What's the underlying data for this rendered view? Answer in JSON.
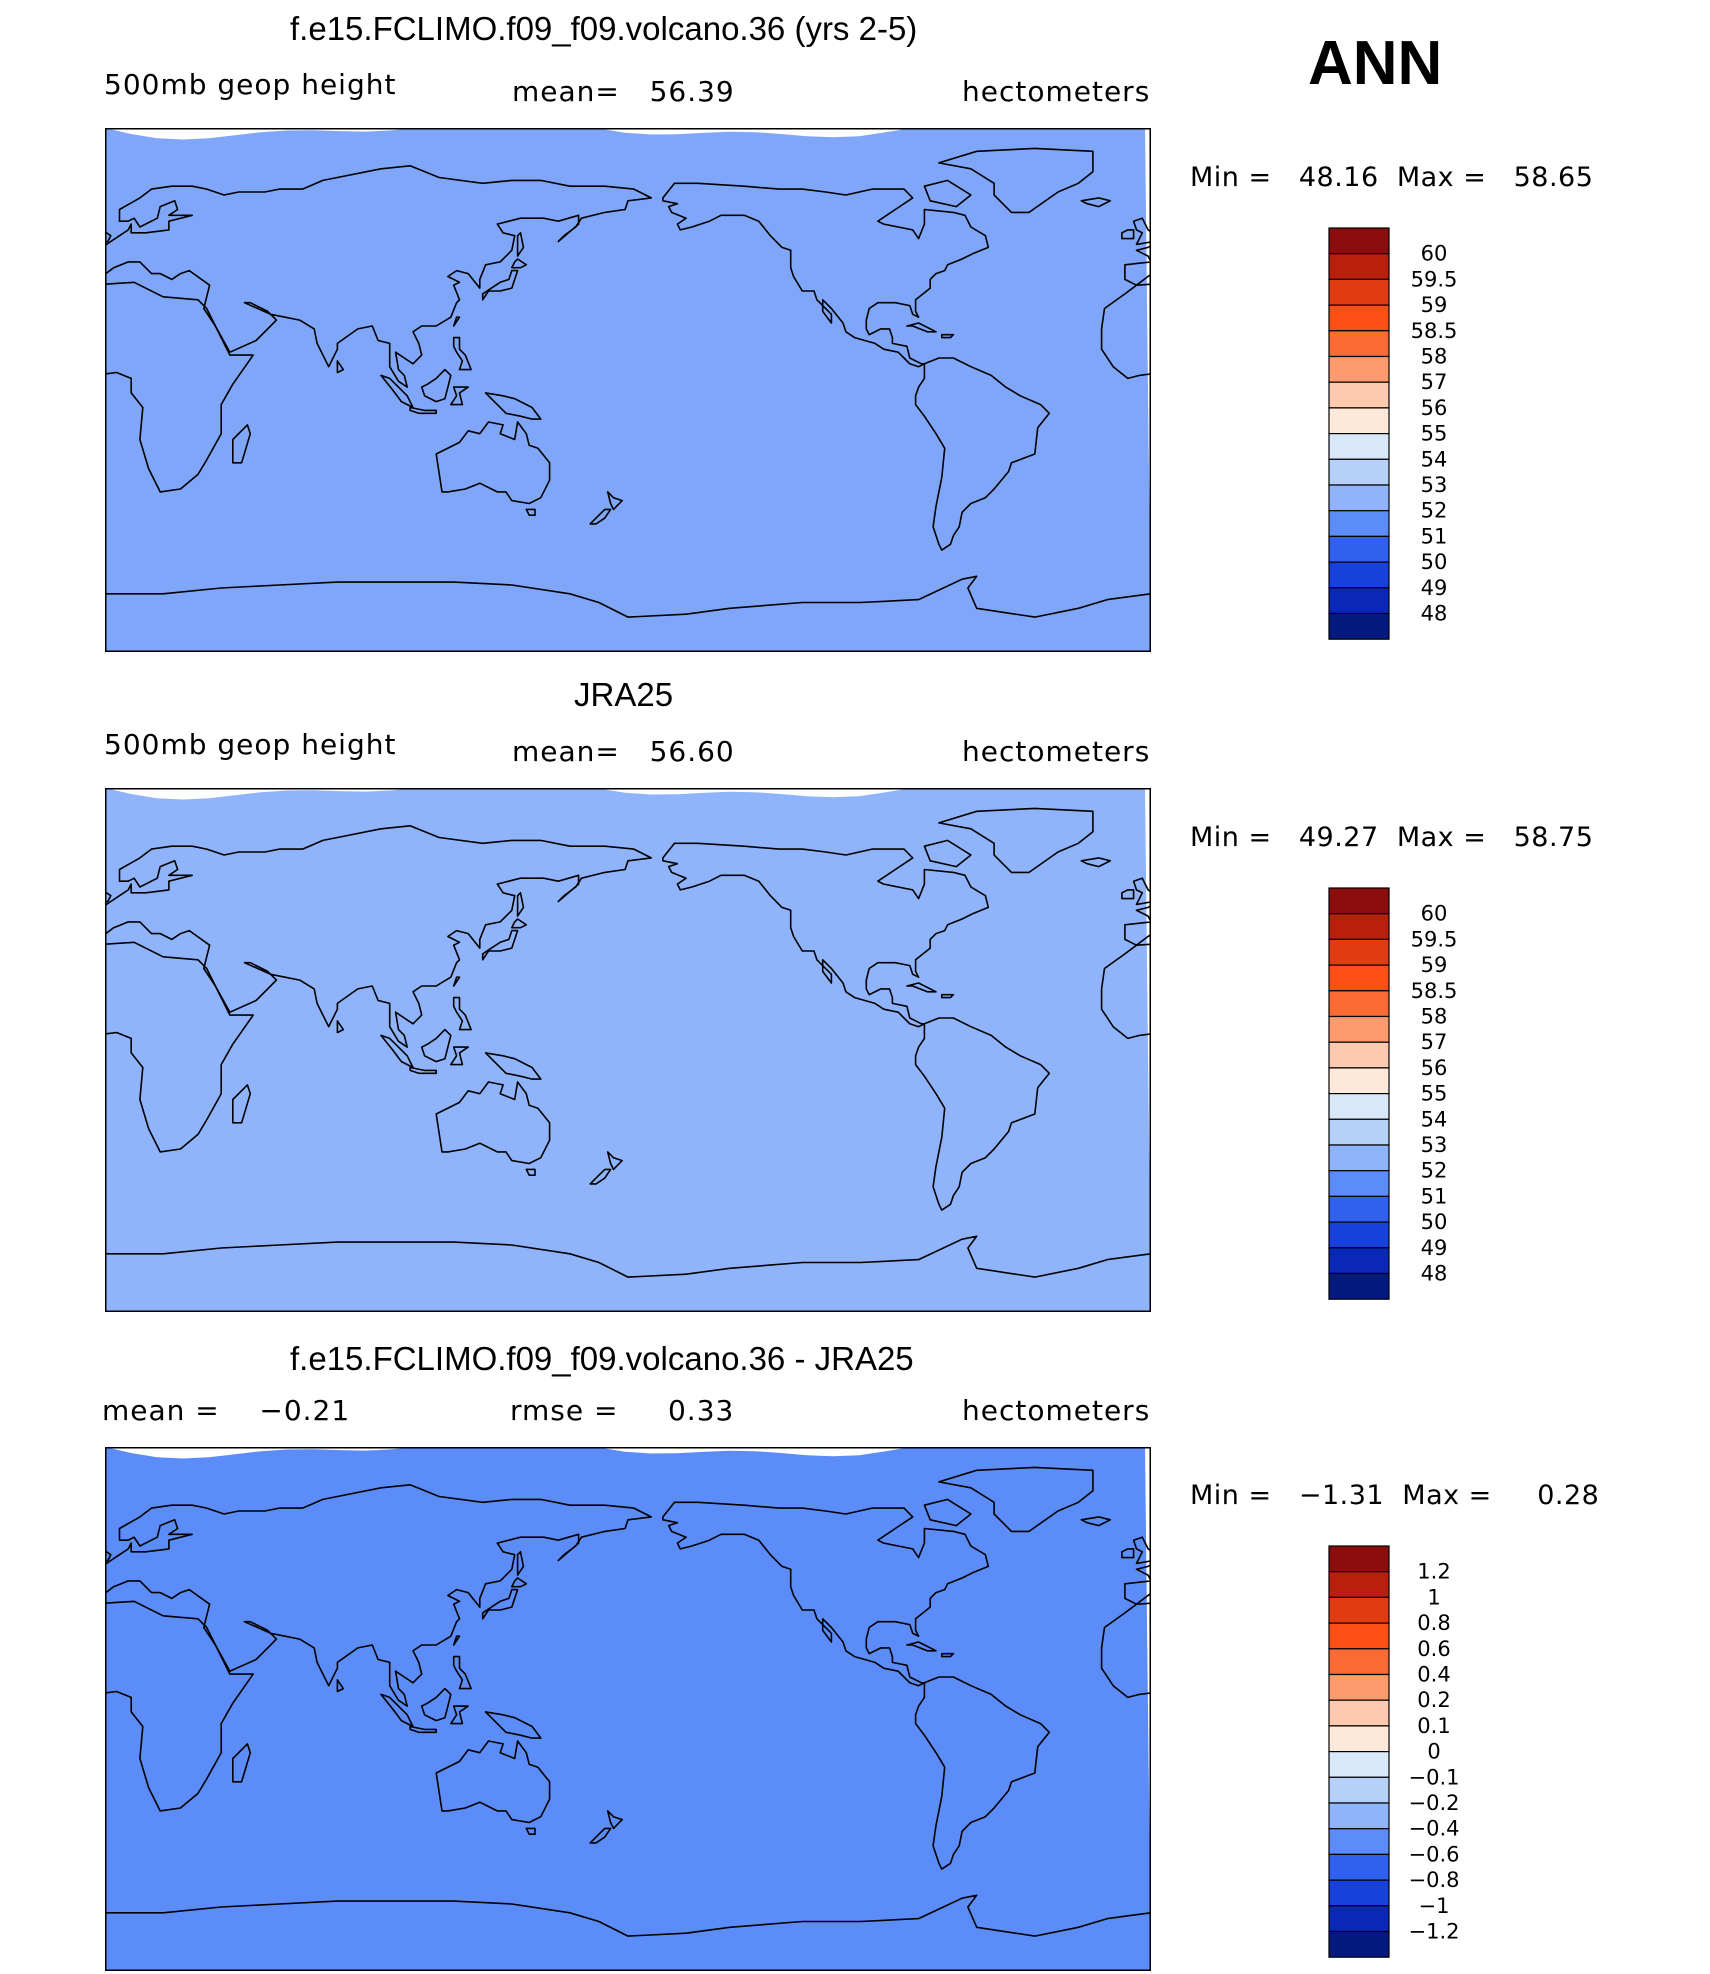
{
  "season": "ANN",
  "chart_data": [
    {
      "type": "heatmap",
      "title": "f.e15.FCLIMO.f09_f09.volcano.36 (yrs 2-5)",
      "left_label": "500mb geop height",
      "center_label": "mean=   56.39",
      "right_label": "hectometers",
      "minmax": "Min =   48.16  Max =   58.65",
      "min": 48.16,
      "max": 58.65,
      "legend_labels": [
        "60",
        "59.5",
        "59",
        "58.5",
        "58",
        "57",
        "56",
        "55",
        "54",
        "53",
        "52",
        "51",
        "50",
        "49",
        "48"
      ],
      "legend_colors": [
        "#8b0d0d",
        "#b8200d",
        "#e23b12",
        "#fb4f16",
        "#fd6b35",
        "#fd9b6c",
        "#fec9ae",
        "#fde9d9",
        "#d8e8f8",
        "#b7d0fa",
        "#8fb4fb",
        "#5b8cf8",
        "#2f60ee",
        "#1740dc",
        "#0a28b8",
        "#051a80"
      ],
      "bands_top_to_bottom": [
        "#7fa6f9",
        "#b7d0fa",
        "#d8e8f8",
        "#fec9ae",
        "#fd9b6c",
        "#fd6b35",
        "#fb4f16",
        "#fd6b35",
        "#fb4f16",
        "#fd6b35",
        "#fd9b6c",
        "#fec9ae",
        "#fde9d9",
        "#d8e8f8",
        "#b7d0fa",
        "#8fb4fb",
        "#5b8cf8",
        "#2f60ee",
        "#1740dc",
        "#0a28b8"
      ]
    },
    {
      "type": "heatmap",
      "title": "JRA25",
      "left_label": "500mb geop height",
      "center_label": "mean=   56.60",
      "right_label": "hectometers",
      "minmax": "Min =   49.27  Max =   58.75",
      "min": 49.27,
      "max": 58.75,
      "legend_labels": [
        "60",
        "59.5",
        "59",
        "58.5",
        "58",
        "57",
        "56",
        "55",
        "54",
        "53",
        "52",
        "51",
        "50",
        "49",
        "48"
      ],
      "legend_colors": [
        "#8b0d0d",
        "#b8200d",
        "#e23b12",
        "#fb4f16",
        "#fd6b35",
        "#fd9b6c",
        "#fec9ae",
        "#fde9d9",
        "#d8e8f8",
        "#b7d0fa",
        "#8fb4fb",
        "#5b8cf8",
        "#2f60ee",
        "#1740dc",
        "#0a28b8",
        "#051a80"
      ],
      "bands_top_to_bottom": [
        "#8fb4fb",
        "#b7d0fa",
        "#d8e8f8",
        "#fde9d9",
        "#fec9ae",
        "#fd9b6c",
        "#fd6b35",
        "#fb4f16",
        "#fb4f16",
        "#fb4f16",
        "#fd6b35",
        "#fd9b6c",
        "#fec9ae",
        "#fde9d9",
        "#d8e8f8",
        "#b7d0fa",
        "#8fb4fb",
        "#5b8cf8",
        "#2f60ee",
        "#1740dc"
      ]
    },
    {
      "type": "heatmap",
      "title": "f.e15.FCLIMO.f09_f09.volcano.36 - JRA25",
      "left_label": "mean =    −0.21",
      "center_label": "rmse =     0.33",
      "right_label": "hectometers",
      "minmax": "Min =   −1.31  Max =     0.28",
      "min": -1.31,
      "max": 0.28,
      "legend_labels": [
        "1.2",
        "1",
        "0.8",
        "0.6",
        "0.4",
        "0.2",
        "0.1",
        "0",
        "−0.1",
        "−0.2",
        "−0.4",
        "−0.6",
        "−0.8",
        "−1",
        "−1.2"
      ],
      "legend_colors": [
        "#8b0d0d",
        "#b8200d",
        "#e23b12",
        "#fb4f16",
        "#fd6b35",
        "#fd9b6c",
        "#fec9ae",
        "#fde9d9",
        "#d8e8f8",
        "#b7d0fa",
        "#8fb4fb",
        "#5b8cf8",
        "#2f60ee",
        "#1740dc",
        "#0a28b8",
        "#051a80"
      ],
      "bands_top_to_bottom": [
        "#5b8cf8",
        "#8fb4fb",
        "#b7d0fa",
        "#d8e8f8",
        "#b7d0fa",
        "#b7d0fa",
        "#b7d0fa",
        "#b7d0fa",
        "#b7d0fa",
        "#b7d0fa",
        "#b7d0fa",
        "#8fb4fb",
        "#b7d0fa",
        "#8fb4fb",
        "#5b8cf8",
        "#5b8cf8",
        "#2f60ee",
        "#1740dc",
        "#0a28b8",
        "#1740dc"
      ]
    }
  ]
}
